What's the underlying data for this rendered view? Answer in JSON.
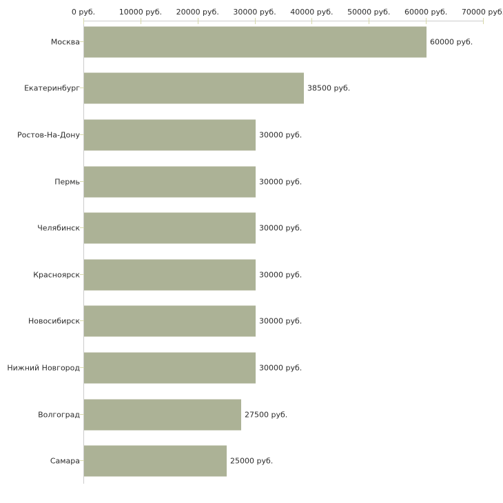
{
  "chart_data": {
    "type": "bar",
    "orientation": "horizontal",
    "title": "",
    "xlabel": "",
    "ylabel": "",
    "unit": "руб.",
    "categories": [
      "Москва",
      "Екатеринбург",
      "Ростов-На-Дону",
      "Пермь",
      "Челябинск",
      "Красноярск",
      "Новосибирск",
      "Нижний Новгород",
      "Волгоград",
      "Самара"
    ],
    "values": [
      60000,
      38500,
      30000,
      30000,
      30000,
      30000,
      30000,
      30000,
      27500,
      25000
    ],
    "value_labels": [
      "60000 руб.",
      "38500 руб.",
      "30000 руб.",
      "30000 руб.",
      "30000 руб.",
      "30000 руб.",
      "30000 руб.",
      "30000 руб.",
      "27500 руб.",
      "25000 руб."
    ],
    "x_tick_values": [
      0,
      10000,
      20000,
      30000,
      40000,
      50000,
      60000,
      70000
    ],
    "x_tick_labels": [
      "0 руб.",
      "10000 руб.",
      "20000 руб.",
      "30000 руб.",
      "40000 руб.",
      "50000 руб.",
      "60000 руб.",
      "70000 руб."
    ],
    "xlim": [
      0,
      70000
    ],
    "grid": false,
    "legend": "none",
    "colors": {
      "bar": "#acb296",
      "axis_line": "#cccccc",
      "tick_mark": "#d6d8a9",
      "text": "#2b2b2b",
      "background": "#ffffff"
    }
  }
}
